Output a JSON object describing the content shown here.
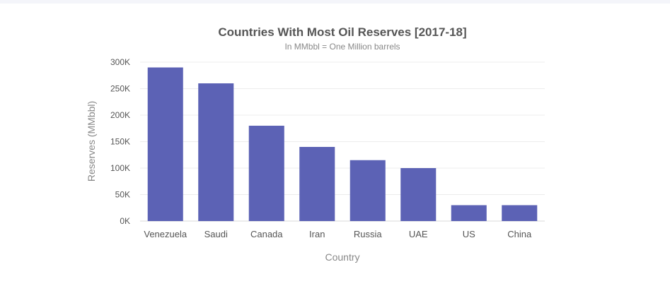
{
  "chart_data": {
    "type": "bar",
    "title": "Countries With Most Oil Reserves [2017-18]",
    "subtitle": "In MMbbl = One Million barrels",
    "xlabel": "Country",
    "ylabel": "Reserves (MMbbl)",
    "categories": [
      "Venezuela",
      "Saudi",
      "Canada",
      "Iran",
      "Russia",
      "UAE",
      "US",
      "China"
    ],
    "values": [
      290000,
      260000,
      180000,
      140000,
      115000,
      100000,
      30000,
      30000
    ],
    "ylim": [
      0,
      300000
    ],
    "yticks": [
      0,
      50000,
      100000,
      150000,
      200000,
      250000,
      300000
    ],
    "ytick_labels": [
      "0K",
      "50K",
      "100K",
      "150K",
      "200K",
      "250K",
      "300K"
    ],
    "grid": true,
    "legend": "none",
    "bar_color": "#5c62b5"
  }
}
